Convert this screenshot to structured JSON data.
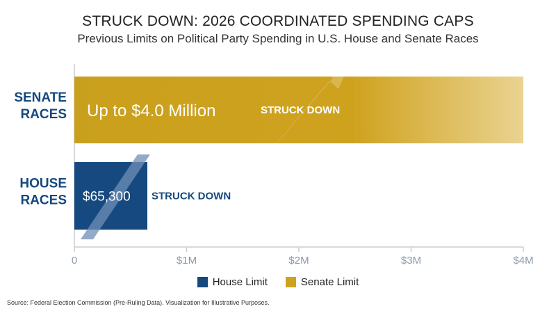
{
  "title": "STRUCK DOWN: 2026 COORDINATED SPENDING CAPS",
  "subtitle": "Previous Limits on Political Party Spending in U.S. House and Senate Races",
  "source": "Source: Federal Election Commission (Pre-Ruling Data). Visualization for Illustrative Purposes.",
  "colors": {
    "house": "#15497f",
    "senate": "#cfa21e",
    "axis": "#c8cdd4"
  },
  "chart_data": {
    "type": "bar",
    "orientation": "horizontal",
    "categories": [
      {
        "lines": [
          "SENATE",
          "RACES"
        ]
      },
      {
        "lines": [
          "HOUSE",
          "RACES"
        ]
      }
    ],
    "series": [
      {
        "name": "Senate Limit",
        "category_index": 0,
        "value": 4000000,
        "label": "Up to $4.0 Million",
        "annotation": "STRUCK DOWN",
        "color": "#cfa21e"
      },
      {
        "name": "House Limit",
        "category_index": 1,
        "value": 65300,
        "label": "$65,300",
        "annotation": "STRUCK DOWN",
        "color": "#15497f"
      }
    ],
    "xlim": [
      0,
      4000000
    ],
    "xticks": [
      {
        "value": 0,
        "label": "0"
      },
      {
        "value": 1000000,
        "label": "$1M"
      },
      {
        "value": 2000000,
        "label": "$2M"
      },
      {
        "value": 3000000,
        "label": "$3M"
      },
      {
        "value": 4000000,
        "label": "$4M"
      }
    ],
    "legend": [
      "House Limit",
      "Senate Limit"
    ],
    "legend_position": "bottom",
    "grid": true
  }
}
